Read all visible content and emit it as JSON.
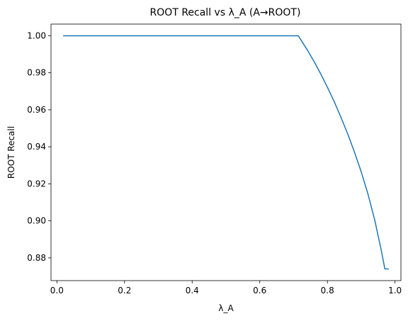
{
  "chart_data": {
    "type": "line",
    "title": "ROOT Recall vs λ_A (A→ROOT)",
    "xlabel": "λ_A",
    "ylabel": "ROOT Recall",
    "xlim": [
      -0.0175,
      1.0175
    ],
    "ylim": [
      0.8677,
      1.0063
    ],
    "xticks": [
      0.0,
      0.2,
      0.4,
      0.6,
      0.8,
      1.0
    ],
    "xtick_labels": [
      "0.0",
      "0.2",
      "0.4",
      "0.6",
      "0.8",
      "1.0"
    ],
    "yticks": [
      0.88,
      0.9,
      0.92,
      0.94,
      0.96,
      0.98,
      1.0
    ],
    "ytick_labels": [
      "0.88",
      "0.90",
      "0.92",
      "0.94",
      "0.96",
      "0.98",
      "1.00"
    ],
    "grid": false,
    "line_color": "#1f77b4",
    "series": [
      {
        "x": [
          0.02,
          0.1,
          0.2,
          0.3,
          0.4,
          0.5,
          0.6,
          0.7,
          0.714,
          0.74,
          0.76,
          0.78,
          0.8,
          0.82,
          0.84,
          0.86,
          0.88,
          0.9,
          0.92,
          0.94,
          0.96,
          0.97,
          0.98
        ],
        "y": [
          1.0,
          1.0,
          1.0,
          1.0,
          1.0,
          1.0,
          1.0,
          1.0,
          1.0,
          0.9925,
          0.9863,
          0.9795,
          0.9722,
          0.9645,
          0.956,
          0.947,
          0.9372,
          0.9265,
          0.9145,
          0.9005,
          0.8835,
          0.874,
          0.874
        ]
      }
    ]
  }
}
